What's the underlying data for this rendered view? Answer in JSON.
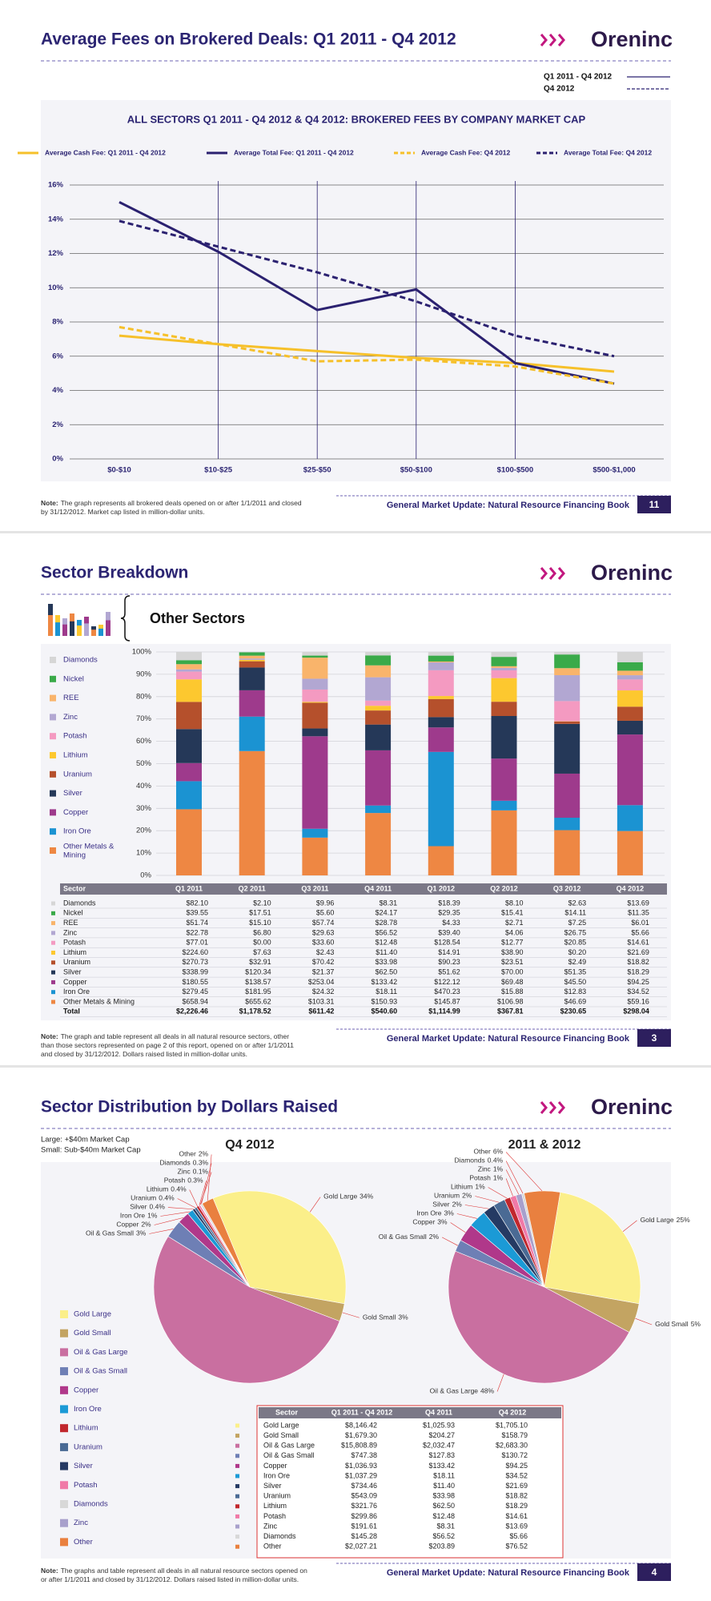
{
  "brand": "Oreninc",
  "footer": "General Market Update: Natural Resource Financing Book",
  "note_label": "Note:",
  "pages": [
    {
      "title": "Average Fees on Brokered Deals: Q1 2011 - Q4 2012",
      "key": [
        "Q1 2011 - Q4 2012",
        "Q4 2012"
      ],
      "note": [
        "The graph represents all brokered deals opened on or after 1/1/2011 and closed",
        "by 31/12/2012. Market cap listed in million-dollar units."
      ],
      "page_number": "11"
    },
    {
      "title": "Sector Breakdown",
      "subtitle": "Other Sectors",
      "note": [
        "The graph and table represent all deals in all natural resource sectors, other",
        "than those sectors represented on page 2 of this report, opened on or after 1/1/2011",
        "and closed by 31/12/2012. Dollars raised listed in million-dollar units."
      ],
      "page_number": "3"
    },
    {
      "title": "Sector Distribution by Dollars Raised",
      "size_key": [
        "Large: +$40m Market Cap",
        "Small: Sub-$40m Market Cap"
      ],
      "legend": [
        "Gold Large",
        "Gold Small",
        "Oil & Gas Large",
        "Oil & Gas Small",
        "Copper",
        "Iron Ore",
        "Lithium",
        "Uranium",
        "Silver",
        "Potash",
        "Diamonds",
        "Zinc",
        "Other"
      ],
      "note": [
        "The graphs and table represent all deals in all natural resource sectors opened on",
        "or after 1/1/2011 and closed by 31/12/2012. Dollars raised listed in million-dollar units."
      ],
      "page_number": "4"
    }
  ],
  "chart_data": [
    {
      "type": "line",
      "title": "ALL SECTORS Q1 2011 - Q4 2012 & Q4 2012: BROKERED FEES BY COMPANY MARKET CAP",
      "categories": [
        "$0-$10",
        "$10-$25",
        "$25-$50",
        "$50-$100",
        "$100-$500",
        "$500-$1,000"
      ],
      "series": [
        {
          "name": "Average Cash Fee: Q1 2011 - Q4 2012",
          "color": "#f6c02a",
          "dashed": false,
          "values": [
            7.2,
            6.7,
            6.3,
            5.9,
            5.6,
            5.1
          ]
        },
        {
          "name": "Average Total Fee: Q1 2011 - Q4 2012",
          "color": "#2b2170",
          "dashed": false,
          "values": [
            15.0,
            12.1,
            8.7,
            9.9,
            5.6,
            4.4
          ]
        },
        {
          "name": "Average Cash Fee: Q4 2012",
          "color": "#f6c02a",
          "dashed": true,
          "values": [
            7.7,
            6.7,
            5.7,
            5.8,
            5.4,
            4.4
          ]
        },
        {
          "name": "Average Total Fee: Q4 2012",
          "color": "#2b2170",
          "dashed": true,
          "values": [
            13.9,
            12.4,
            10.9,
            9.2,
            7.2,
            6.0
          ]
        }
      ],
      "ylim": [
        0,
        16
      ],
      "yticks": [
        {
          "value": 0,
          "label": "0%"
        },
        {
          "value": 2,
          "label": "2%"
        },
        {
          "value": 4,
          "label": "4%"
        },
        {
          "value": 6,
          "label": "6%"
        },
        {
          "value": 8,
          "label": "8%"
        },
        {
          "value": 10,
          "label": "10%"
        },
        {
          "value": 12,
          "label": "12%"
        },
        {
          "value": 14,
          "label": "14%"
        },
        {
          "value": 16,
          "label": "16%"
        }
      ],
      "grid": true,
      "xgrid": true
    },
    {
      "type": "bar",
      "stacked": "percent",
      "categories": [
        "Q1 2011",
        "Q2 2011",
        "Q3 2011",
        "Q4 2011",
        "Q1 2012",
        "Q2 2012",
        "Q3 2012",
        "Q4 2012"
      ],
      "series": [
        {
          "name": "Diamonds",
          "color": "#d6d6d6",
          "values": [
            82.1,
            2.1,
            9.96,
            8.31,
            18.39,
            8.1,
            2.63,
            13.69
          ],
          "value_labels": [
            "$82.10",
            "$2.10",
            "$9.96",
            "$8.31",
            "$18.39",
            "$8.10",
            "$2.63",
            "$13.69"
          ]
        },
        {
          "name": "Nickel",
          "color": "#3aaa49",
          "values": [
            39.55,
            17.51,
            5.6,
            24.17,
            29.35,
            15.41,
            14.11,
            11.35
          ],
          "value_labels": [
            "$39.55",
            "$17.51",
            "$5.60",
            "$24.17",
            "$29.35",
            "$15.41",
            "$14.11",
            "$11.35"
          ]
        },
        {
          "name": "REE",
          "color": "#f9b46b",
          "values": [
            51.74,
            15.1,
            57.74,
            28.78,
            4.33,
            2.71,
            7.25,
            6.01
          ],
          "value_labels": [
            "$51.74",
            "$15.10",
            "$57.74",
            "$28.78",
            "$4.33",
            "$2.71",
            "$7.25",
            "$6.01"
          ]
        },
        {
          "name": "Zinc",
          "color": "#b2a7d2",
          "values": [
            22.78,
            6.8,
            29.63,
            56.52,
            39.4,
            4.06,
            26.75,
            5.66
          ],
          "value_labels": [
            "$22.78",
            "$6.80",
            "$29.63",
            "$56.52",
            "$39.40",
            "$4.06",
            "$26.75",
            "$5.66"
          ]
        },
        {
          "name": "Potash",
          "color": "#f49ac1",
          "values": [
            77.01,
            0.0,
            33.6,
            12.48,
            128.54,
            12.77,
            20.85,
            14.61
          ],
          "value_labels": [
            "$77.01",
            "$0.00",
            "$33.60",
            "$12.48",
            "$128.54",
            "$12.77",
            "$20.85",
            "$14.61"
          ]
        },
        {
          "name": "Lithium",
          "color": "#fdc82f",
          "values": [
            224.6,
            7.63,
            2.43,
            11.4,
            14.91,
            38.9,
            0.2,
            21.69
          ],
          "value_labels": [
            "$224.60",
            "$7.63",
            "$2.43",
            "$11.40",
            "$14.91",
            "$38.90",
            "$0.20",
            "$21.69"
          ]
        },
        {
          "name": "Uranium",
          "color": "#b5502c",
          "values": [
            270.73,
            32.91,
            70.42,
            33.98,
            90.23,
            23.51,
            2.49,
            18.82
          ],
          "value_labels": [
            "$270.73",
            "$32.91",
            "$70.42",
            "$33.98",
            "$90.23",
            "$23.51",
            "$2.49",
            "$18.82"
          ]
        },
        {
          "name": "Silver",
          "color": "#253858",
          "values": [
            338.99,
            120.34,
            21.37,
            62.5,
            51.62,
            70.0,
            51.35,
            18.29
          ],
          "value_labels": [
            "$338.99",
            "$120.34",
            "$21.37",
            "$62.50",
            "$51.62",
            "$70.00",
            "$51.35",
            "$18.29"
          ]
        },
        {
          "name": "Copper",
          "color": "#9e3a8c",
          "values": [
            180.55,
            138.57,
            253.04,
            133.42,
            122.12,
            69.48,
            45.5,
            94.25
          ],
          "value_labels": [
            "$180.55",
            "$138.57",
            "$253.04",
            "$133.42",
            "$122.12",
            "$69.48",
            "$45.50",
            "$94.25"
          ]
        },
        {
          "name": "Iron Ore",
          "color": "#1b93d2",
          "values": [
            279.45,
            181.95,
            24.32,
            18.11,
            470.23,
            15.88,
            12.83,
            34.52
          ],
          "value_labels": [
            "$279.45",
            "$181.95",
            "$24.32",
            "$18.11",
            "$470.23",
            "$15.88",
            "$12.83",
            "$34.52"
          ]
        },
        {
          "name": "Other Metals & Mining",
          "color": "#ee8743",
          "values": [
            658.94,
            655.62,
            103.31,
            150.93,
            145.87,
            106.98,
            46.69,
            59.16
          ],
          "value_labels": [
            "$658.94",
            "$655.62",
            "$103.31",
            "$150.93",
            "$145.87",
            "$106.98",
            "$46.69",
            "$59.16"
          ]
        }
      ],
      "ylim": [
        0,
        100
      ],
      "yticks": [
        {
          "value": 0,
          "label": "0%"
        },
        {
          "value": 10,
          "label": "10%"
        },
        {
          "value": 20,
          "label": "20%"
        },
        {
          "value": 30,
          "label": "30%"
        },
        {
          "value": 40,
          "label": "40%"
        },
        {
          "value": 50,
          "label": "50%"
        },
        {
          "value": 60,
          "label": "60%"
        },
        {
          "value": 70,
          "label": "70%"
        },
        {
          "value": 80,
          "label": "80%"
        },
        {
          "value": 90,
          "label": "90%"
        },
        {
          "value": 100,
          "label": "100%"
        }
      ],
      "grid": true
    },
    {
      "type": "pie",
      "title": "Q4 2012",
      "categories": [
        "Gold Large",
        "Gold Small",
        "Oil & Gas Large",
        "Oil & Gas Small",
        "Copper",
        "Iron Ore",
        "Silver",
        "Uranium",
        "Lithium",
        "Potash",
        "Zinc",
        "Diamonds",
        "Other"
      ],
      "colors": [
        "#fbef8a",
        "#c3a462",
        "#c96fa0",
        "#6e7fb5",
        "#b0388a",
        "#1b9ad6",
        "#253a63",
        "#4a6a94",
        "#c1272d",
        "#f07aa7",
        "#a8a0cc",
        "#d8d8d8",
        "#e9803f"
      ],
      "values": [
        34,
        3,
        53,
        3,
        2,
        1,
        0.4,
        0.4,
        0.4,
        0.3,
        0.1,
        0.3,
        2
      ],
      "value_labels": [
        "34%",
        "3%",
        null,
        "3%",
        "2%",
        "1%",
        "0.4%",
        "0.4%",
        "0.4%",
        "0.3%",
        "0.1%",
        "0.3%",
        "2%"
      ]
    },
    {
      "type": "pie",
      "title": "2011 & 2012",
      "categories": [
        "Gold Large",
        "Gold Small",
        "Oil & Gas Large",
        "Oil & Gas Small",
        "Copper",
        "Iron Ore",
        "Silver",
        "Uranium",
        "Lithium",
        "Potash",
        "Zinc",
        "Diamonds",
        "Other"
      ],
      "colors": [
        "#fbef8a",
        "#c3a462",
        "#c96fa0",
        "#6e7fb5",
        "#b0388a",
        "#1b9ad6",
        "#253a63",
        "#4a6a94",
        "#c1272d",
        "#f07aa7",
        "#a8a0cc",
        "#d8d8d8",
        "#e9803f"
      ],
      "values": [
        25,
        5,
        48,
        2,
        3,
        3,
        2,
        2,
        1,
        1,
        1,
        0.4,
        6
      ],
      "value_labels": [
        "25%",
        "5%",
        "48%",
        "2%",
        "3%",
        "3%",
        "2%",
        "2%",
        "1%",
        "1%",
        "1%",
        "0.4%",
        "6%"
      ]
    }
  ],
  "tables": [
    {
      "header": "Sector",
      "total_label": "Total",
      "totals": [
        "$2,226.46",
        "$1,178.52",
        "$611.42",
        "$540.60",
        "$1,114.99",
        "$367.81",
        "$230.65",
        "$298.04"
      ]
    },
    {
      "columns": [
        "Sector",
        "Q1 2011 - Q4 2012",
        "Q4 2011",
        "Q4 2012"
      ],
      "rows": [
        [
          "$8,146.42",
          "$1,025.93",
          "$1,705.10"
        ],
        [
          "$1,679.30",
          "$204.27",
          "$158.79"
        ],
        [
          "$15,808.89",
          "$2,032.47",
          "$2,683.30"
        ],
        [
          "$747.38",
          "$127.83",
          "$130.72"
        ],
        [
          "$1,036.93",
          "$133.42",
          "$94.25"
        ],
        [
          "$1,037.29",
          "$18.11",
          "$34.52"
        ],
        [
          "$734.46",
          "$11.40",
          "$21.69"
        ],
        [
          "$543.09",
          "$33.98",
          "$18.82"
        ],
        [
          "$321.76",
          "$62.50",
          "$18.29"
        ],
        [
          "$299.86",
          "$12.48",
          "$14.61"
        ],
        [
          "$191.61",
          "$8.31",
          "$13.69"
        ],
        [
          "$145.28",
          "$56.52",
          "$5.66"
        ],
        [
          "$2,027.21",
          "$203.89",
          "$76.52"
        ]
      ]
    }
  ]
}
